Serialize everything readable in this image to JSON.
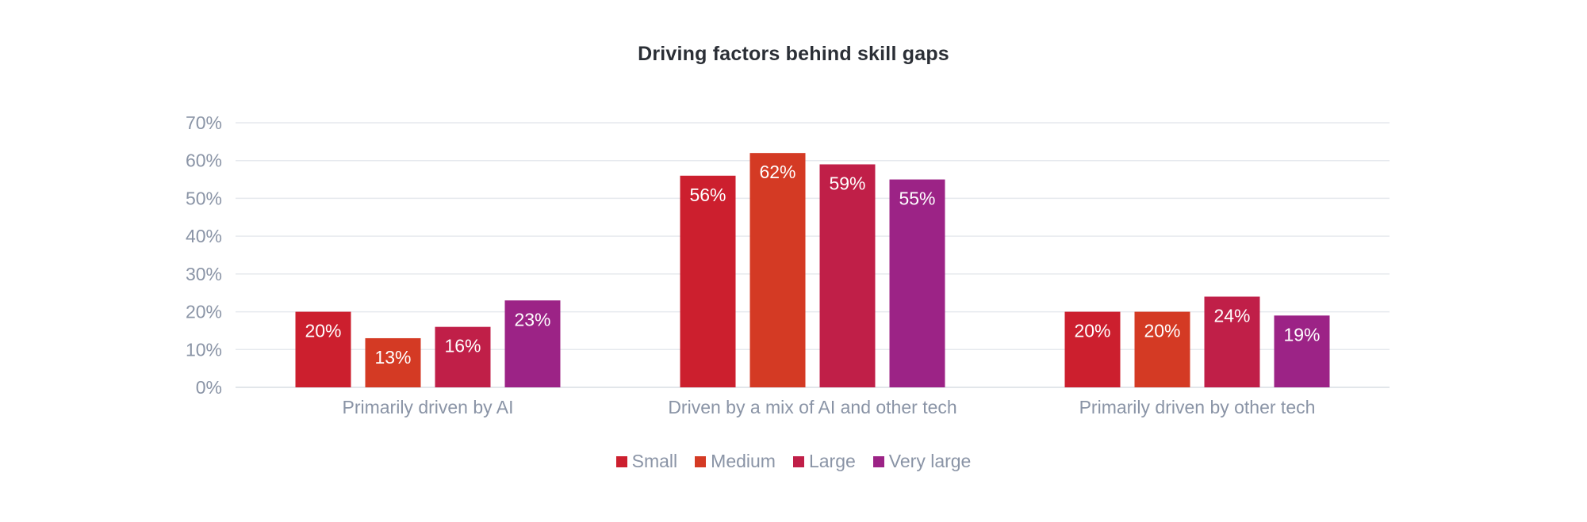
{
  "chart_data": {
    "type": "bar",
    "title": "Driving factors behind skill gaps",
    "categories": [
      "Primarily driven by AI",
      "Driven by a mix of AI and other tech",
      "Primarily driven by other tech"
    ],
    "series": [
      {
        "name": "Small",
        "values": [
          20,
          56,
          20
        ],
        "color": "#cc1f2e"
      },
      {
        "name": "Medium",
        "values": [
          13,
          62,
          20
        ],
        "color": "#d43a24"
      },
      {
        "name": "Large",
        "values": [
          16,
          59,
          24
        ],
        "color": "#c01f48"
      },
      {
        "name": "Very large",
        "values": [
          23,
          55,
          19
        ],
        "color": "#9c2386"
      }
    ],
    "value_suffix": "%",
    "y_ticks": [
      "0%",
      "10%",
      "20%",
      "30%",
      "40%",
      "50%",
      "60%",
      "70%"
    ],
    "ylim": [
      0,
      70
    ],
    "xlabel": "",
    "ylabel": "",
    "grid": true,
    "legend_position": "bottom"
  }
}
